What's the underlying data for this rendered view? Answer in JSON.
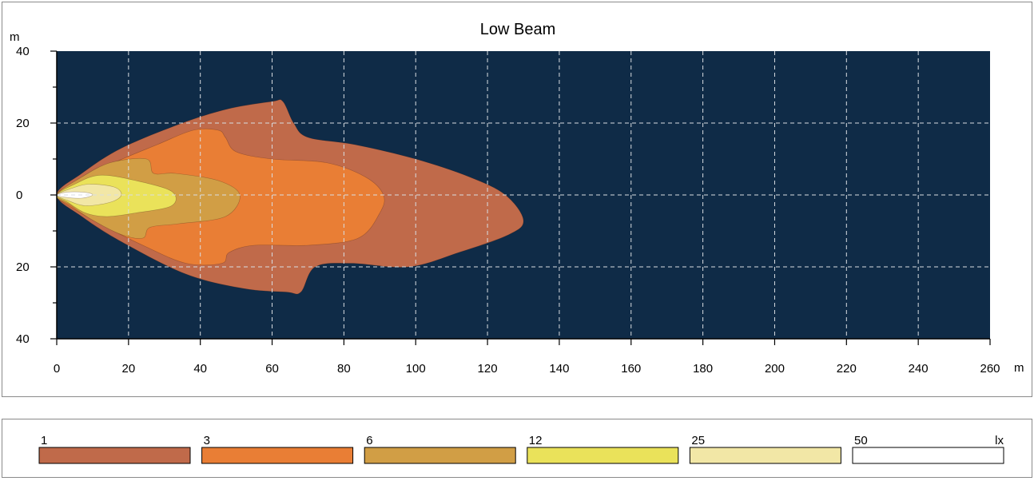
{
  "chart_data": {
    "type": "heatmap",
    "title": "Low Beam",
    "xlabel": "m",
    "ylabel": "m",
    "xlim": [
      0,
      260
    ],
    "ylim": [
      -40,
      40
    ],
    "x_ticks": [
      0,
      20,
      40,
      60,
      80,
      100,
      120,
      140,
      160,
      180,
      200,
      220,
      240,
      260
    ],
    "y_ticks": [
      {
        "value": 40,
        "label": "40"
      },
      {
        "value": 20,
        "label": "20"
      },
      {
        "value": 0,
        "label": "0"
      },
      {
        "value": -20,
        "label": "20"
      },
      {
        "value": -40,
        "label": "40"
      }
    ],
    "grid": true,
    "background_color": "#0f2b47",
    "unit": "lx",
    "levels": [
      {
        "lux": "1",
        "color": "#c06a4a",
        "outline": [
          [
            0,
            0
          ],
          [
            7,
            6
          ],
          [
            18,
            13
          ],
          [
            35,
            20
          ],
          [
            48,
            24
          ],
          [
            60,
            26
          ],
          [
            63,
            26
          ],
          [
            66,
            20
          ],
          [
            70,
            16
          ],
          [
            83,
            14
          ],
          [
            100,
            10
          ],
          [
            115,
            5
          ],
          [
            125,
            0
          ],
          [
            130,
            -7
          ],
          [
            126,
            -11
          ],
          [
            112,
            -16
          ],
          [
            98,
            -20
          ],
          [
            82,
            -19
          ],
          [
            72,
            -20
          ],
          [
            68,
            -27
          ],
          [
            64,
            -27
          ],
          [
            52,
            -26
          ],
          [
            36,
            -22
          ],
          [
            18,
            -13
          ],
          [
            7,
            -6
          ]
        ]
      },
      {
        "lux": "3",
        "color": "#e97e35",
        "outline": [
          [
            0,
            0
          ],
          [
            6,
            4
          ],
          [
            16,
            9
          ],
          [
            28,
            14
          ],
          [
            38,
            18
          ],
          [
            45,
            18
          ],
          [
            47,
            16
          ],
          [
            50,
            12
          ],
          [
            60,
            10
          ],
          [
            75,
            9
          ],
          [
            86,
            5
          ],
          [
            91,
            0
          ],
          [
            90,
            -5
          ],
          [
            84,
            -12
          ],
          [
            70,
            -14
          ],
          [
            55,
            -14
          ],
          [
            48,
            -16
          ],
          [
            46,
            -19
          ],
          [
            36,
            -19
          ],
          [
            24,
            -14
          ],
          [
            12,
            -8
          ],
          [
            5,
            -4
          ]
        ]
      },
      {
        "lux": "6",
        "color": "#d19e45",
        "outline": [
          [
            0,
            0
          ],
          [
            7,
            5
          ],
          [
            15,
            9
          ],
          [
            25,
            10
          ],
          [
            27,
            6
          ],
          [
            33,
            6
          ],
          [
            45,
            4
          ],
          [
            51,
            0
          ],
          [
            47,
            -6
          ],
          [
            34,
            -8
          ],
          [
            26,
            -9
          ],
          [
            24,
            -12
          ],
          [
            18,
            -11
          ],
          [
            10,
            -7
          ],
          [
            4,
            -3
          ]
        ]
      },
      {
        "lux": "12",
        "color": "#eae25a",
        "outline": [
          [
            0,
            0
          ],
          [
            5,
            3
          ],
          [
            12,
            5.5
          ],
          [
            22,
            4
          ],
          [
            32,
            1
          ],
          [
            32,
            -3
          ],
          [
            22,
            -5
          ],
          [
            14,
            -6
          ],
          [
            8,
            -5
          ],
          [
            3,
            -2
          ]
        ]
      },
      {
        "lux": "25",
        "color": "#f2e7a6",
        "outline": [
          [
            0,
            0
          ],
          [
            4,
            1.8
          ],
          [
            9,
            3
          ],
          [
            16,
            2.2
          ],
          [
            18,
            0
          ],
          [
            15,
            -2
          ],
          [
            8,
            -3
          ],
          [
            3,
            -1.5
          ]
        ]
      },
      {
        "lux": "50",
        "color": "#ffffff",
        "outline": [
          [
            0,
            0
          ],
          [
            3,
            0.8
          ],
          [
            8,
            0.7
          ],
          [
            10,
            0
          ],
          [
            7,
            -0.9
          ],
          [
            2,
            -0.6
          ]
        ]
      }
    ]
  }
}
